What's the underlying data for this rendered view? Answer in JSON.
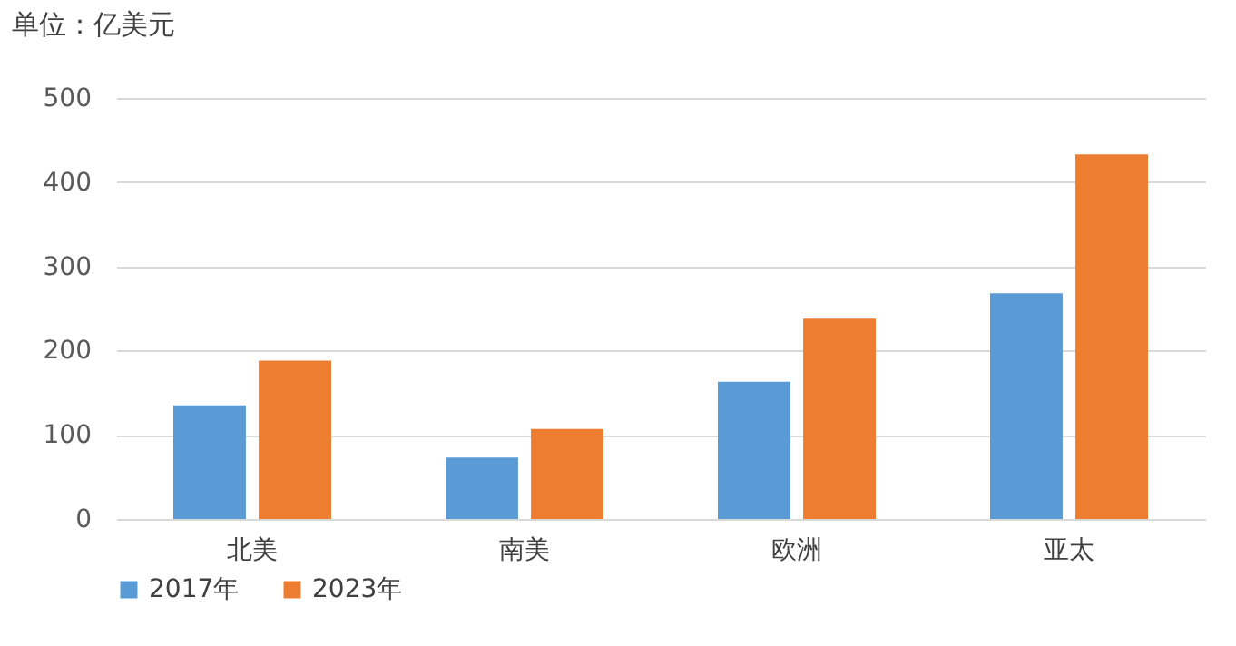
{
  "chart_data": {
    "type": "bar",
    "ylabel": "单位：亿美元",
    "categories": [
      "北美",
      "南美",
      "欧洲",
      "亚太"
    ],
    "series": [
      {
        "name": "2017年",
        "color": "#5b9bd5",
        "values": [
          135,
          73,
          163,
          268
        ]
      },
      {
        "name": "2023年",
        "color": "#ed7d31",
        "values": [
          188,
          107,
          238,
          433
        ]
      }
    ],
    "ylim": [
      0,
      500
    ],
    "yticks": [
      0,
      100,
      200,
      300,
      400,
      500
    ],
    "grid": "y",
    "legend": "bottom"
  }
}
